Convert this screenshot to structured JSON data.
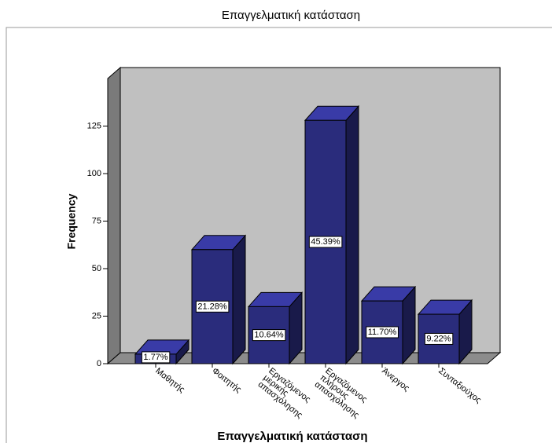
{
  "chart_data": {
    "type": "bar3d",
    "title": "Επαγγελματική κατάσταση",
    "xlabel": "Επαγγελματική κατάσταση",
    "ylabel": "Frequency",
    "categories": [
      "Μαθητής",
      "Φοιτητής",
      "Εργαζόμενος μερικής απασχόλησης",
      "Εργαζόμενος πλήρους απασχόλησης",
      "Άνεργος",
      "Συνταξιούχος"
    ],
    "values": [
      5,
      60,
      30,
      128,
      33,
      26
    ],
    "value_labels": [
      "1.77%",
      "21.28%",
      "10.64%",
      "45.39%",
      "11.70%",
      "9.22%"
    ],
    "color": "#2a2c7c",
    "ylim": [
      0,
      150
    ],
    "yticks": [
      0,
      25,
      50,
      75,
      100,
      125
    ]
  }
}
